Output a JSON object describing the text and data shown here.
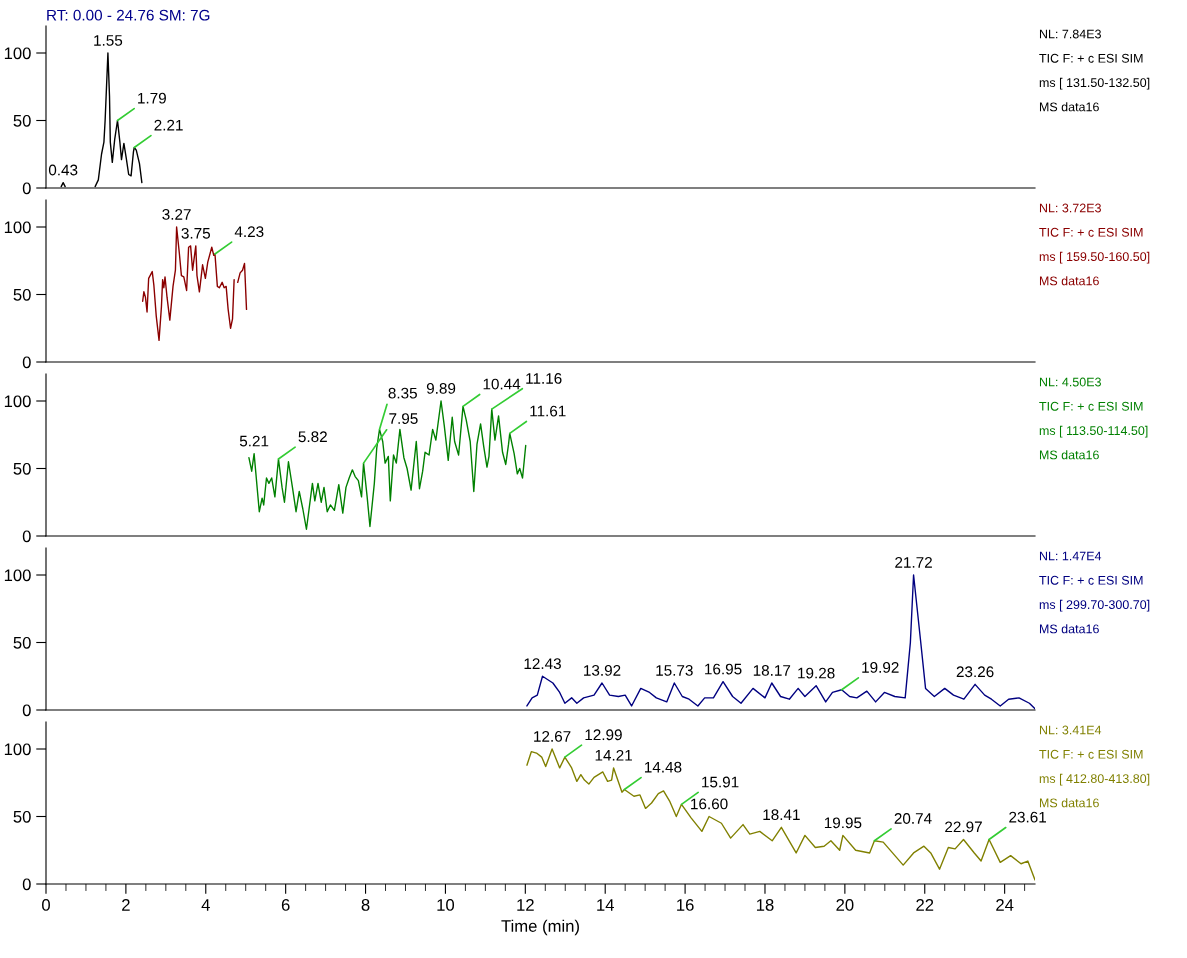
{
  "chart_data": [
    {
      "type": "line",
      "title": "RT: 0.00 - 24.76 SM: 7G",
      "xlim": [
        0,
        24.76
      ],
      "ylim": [
        0,
        120
      ],
      "xticks": [
        0,
        2,
        4,
        6,
        8,
        10,
        12,
        14,
        16,
        18,
        20,
        22,
        24
      ],
      "yticks": [
        0,
        50,
        100
      ],
      "tick_labels": "y",
      "grid": false,
      "series": [
        {
          "color": "#000000",
          "x": [
            0.38,
            0.43,
            0.48,
            null,
            1.23,
            1.31,
            1.39,
            1.45,
            1.48,
            1.55,
            1.59,
            1.61,
            1.66,
            1.72,
            1.79,
            1.85,
            1.89,
            1.95,
            2.01,
            2.07,
            2.13,
            2.19,
            2.21,
            2.26,
            2.34,
            2.4
          ],
          "values": [
            1,
            4,
            1,
            null,
            1,
            6,
            25,
            34,
            50,
            100,
            68,
            34,
            19,
            36,
            50,
            34,
            21,
            33,
            22,
            10,
            9,
            27,
            30,
            28,
            18,
            4
          ]
        }
      ],
      "annotations": [
        {
          "text": "0.43",
          "x": 0.43,
          "y": 4
        },
        {
          "text": "1.55",
          "x": 1.55,
          "y": 100
        },
        {
          "text": "1.79",
          "x": 1.79,
          "y": 50
        },
        {
          "text": "2.21",
          "x": 2.21,
          "y": 30
        },
        "NL: 7.84E3",
        "TIC F: + c ESI SIM",
        "ms [ 131.50-132.50]",
        "MS data16"
      ]
    },
    {
      "type": "line",
      "xlim": [
        0,
        24.76
      ],
      "ylim": [
        0,
        120
      ],
      "xticks": [
        0,
        2,
        4,
        6,
        8,
        10,
        12,
        14,
        16,
        18,
        20,
        22,
        24
      ],
      "yticks": [
        0,
        50,
        100
      ],
      "tick_labels": "y",
      "grid": false,
      "series": [
        {
          "color": "#8b0000",
          "x": [
            2.42,
            2.45,
            2.49,
            2.53,
            2.57,
            2.66,
            2.7,
            2.76,
            2.83,
            2.89,
            2.92,
            2.95,
            2.98,
            3.03,
            3.1,
            3.18,
            3.24,
            3.27,
            3.34,
            3.39,
            3.45,
            3.52,
            3.57,
            3.62,
            3.67,
            3.75,
            3.78,
            3.84,
            3.92,
            3.99,
            4.05,
            4.15,
            4.2,
            4.23,
            4.29,
            4.34,
            4.41,
            4.46,
            4.51,
            4.56,
            4.62,
            4.67,
            4.71,
            null,
            4.8,
            4.86,
            4.92,
            4.97,
            5.02
          ],
          "values": [
            45,
            52,
            48,
            37,
            62,
            67,
            57,
            34,
            16,
            41,
            61,
            55,
            63,
            48,
            31,
            56,
            68,
            100,
            80,
            64,
            63,
            53,
            85,
            86,
            68,
            86,
            64,
            52,
            72,
            62,
            74,
            85,
            79,
            80,
            56,
            55,
            59,
            55,
            56,
            39,
            25,
            32,
            61,
            null,
            59,
            66,
            68,
            73,
            39
          ]
        }
      ],
      "annotations": [
        {
          "text": "3.27",
          "x": 3.27,
          "y": 100
        },
        {
          "text": "3.75",
          "x": 3.75,
          "y": 86
        },
        {
          "text": "4.23",
          "x": 4.23,
          "y": 80
        },
        "NL: 3.72E3",
        "TIC F: + c ESI SIM",
        "ms [ 159.50-160.50]",
        "MS data16"
      ]
    },
    {
      "type": "line",
      "xlim": [
        0,
        24.76
      ],
      "ylim": [
        0,
        120
      ],
      "xticks": [
        0,
        2,
        4,
        6,
        8,
        10,
        12,
        14,
        16,
        18,
        20,
        22,
        24
      ],
      "yticks": [
        0,
        50,
        100
      ],
      "tick_labels": "y",
      "grid": false,
      "series": [
        {
          "color": "#008000",
          "x": [
            5.08,
            5.15,
            5.21,
            5.34,
            5.41,
            5.45,
            5.52,
            5.58,
            5.65,
            5.73,
            5.82,
            5.91,
            5.97,
            6.07,
            6.17,
            6.26,
            6.34,
            6.43,
            6.52,
            6.67,
            6.73,
            6.81,
            6.89,
            6.96,
            7.04,
            7.12,
            7.22,
            7.33,
            7.43,
            7.51,
            7.59,
            7.67,
            7.74,
            7.82,
            7.9,
            7.95,
            8.04,
            8.11,
            8.22,
            8.28,
            8.35,
            8.43,
            8.49,
            8.57,
            8.62,
            8.7,
            8.77,
            8.86,
            8.96,
            9.04,
            9.14,
            9.27,
            9.35,
            9.43,
            9.49,
            9.59,
            9.68,
            9.76,
            9.89,
            9.97,
            10.07,
            10.17,
            10.23,
            10.33,
            10.44,
            10.52,
            10.62,
            10.71,
            10.79,
            10.88,
            10.96,
            11.04,
            11.09,
            11.16,
            11.24,
            11.33,
            11.43,
            11.51,
            11.58,
            11.61,
            11.72,
            11.8,
            11.86,
            11.93,
            12.01
          ],
          "values": [
            58,
            48,
            61,
            18,
            28,
            23,
            43,
            39,
            43,
            29,
            57,
            36,
            25,
            55,
            36,
            18,
            33,
            20,
            5,
            39,
            26,
            39,
            25,
            36,
            18,
            23,
            19,
            38,
            17,
            36,
            43,
            49,
            44,
            41,
            29,
            54,
            29,
            7,
            39,
            65,
            79,
            70,
            54,
            59,
            26,
            60,
            54,
            79,
            58,
            50,
            34,
            70,
            35,
            48,
            62,
            60,
            79,
            71,
            100,
            82,
            56,
            88,
            70,
            60,
            96,
            86,
            70,
            33,
            68,
            83,
            66,
            51,
            59,
            94,
            71,
            89,
            62,
            53,
            68,
            76,
            61,
            46,
            50,
            43,
            67
          ]
        }
      ],
      "annotations": [
        {
          "text": "5.21",
          "x": 5.21,
          "y": 61
        },
        {
          "text": "5.82",
          "x": 5.82,
          "y": 57
        },
        {
          "text": "7.95",
          "x": 7.95,
          "y": 54
        },
        {
          "text": "8.35",
          "x": 8.35,
          "y": 79
        },
        {
          "text": "9.89",
          "x": 9.89,
          "y": 100
        },
        {
          "text": "10.44",
          "x": 10.44,
          "y": 96
        },
        {
          "text": "11.16",
          "x": 11.16,
          "y": 94
        },
        {
          "text": "11.61",
          "x": 11.61,
          "y": 76
        },
        "NL: 4.50E3",
        "TIC F: + c ESI SIM",
        "ms [ 113.50-114.50]",
        "MS data16"
      ]
    },
    {
      "type": "line",
      "xlim": [
        0,
        24.76
      ],
      "ylim": [
        0,
        120
      ],
      "xticks": [
        0,
        2,
        4,
        6,
        8,
        10,
        12,
        14,
        16,
        18,
        20,
        22,
        24
      ],
      "yticks": [
        0,
        50,
        100
      ],
      "tick_labels": "y",
      "grid": false,
      "series": [
        {
          "color": "#000080",
          "x": [
            12.04,
            12.17,
            12.3,
            12.43,
            12.69,
            12.86,
            12.99,
            13.16,
            13.29,
            13.46,
            13.72,
            13.92,
            14.11,
            14.33,
            14.5,
            14.66,
            14.89,
            15.11,
            15.28,
            15.54,
            15.73,
            15.93,
            16.1,
            16.32,
            16.49,
            16.71,
            16.95,
            17.19,
            17.4,
            17.7,
            18.0,
            18.17,
            18.39,
            18.61,
            18.83,
            19.0,
            19.28,
            19.52,
            19.69,
            19.92,
            20.12,
            20.3,
            20.55,
            20.77,
            20.99,
            21.25,
            21.51,
            21.64,
            21.72,
            21.9,
            22.02,
            22.24,
            22.5,
            22.72,
            22.98,
            23.26,
            23.5,
            23.67,
            23.89,
            24.1,
            24.36,
            24.62,
            24.76
          ],
          "values": [
            3,
            9,
            11,
            25,
            20,
            13,
            5,
            9,
            5,
            9,
            11,
            20,
            11,
            10,
            11,
            3,
            16,
            13,
            9,
            6,
            20,
            10,
            8,
            3,
            9,
            9,
            21,
            10,
            5,
            16,
            9,
            20,
            10,
            8,
            16,
            10,
            18,
            6,
            13,
            15,
            10,
            9,
            14,
            6,
            13,
            10,
            9,
            50,
            100,
            50,
            16,
            10,
            16,
            11,
            8,
            19,
            11,
            8,
            3,
            8,
            9,
            5,
            1
          ]
        }
      ],
      "annotations": [
        {
          "text": "12.43",
          "x": 12.43,
          "y": 25
        },
        {
          "text": "13.92",
          "x": 13.92,
          "y": 20
        },
        {
          "text": "15.73",
          "x": 15.73,
          "y": 20
        },
        {
          "text": "16.95",
          "x": 16.95,
          "y": 21
        },
        {
          "text": "18.17",
          "x": 18.17,
          "y": 20
        },
        {
          "text": "19.28",
          "x": 19.28,
          "y": 18
        },
        {
          "text": "19.92",
          "x": 19.92,
          "y": 15
        },
        {
          "text": "21.72",
          "x": 21.72,
          "y": 100
        },
        {
          "text": "23.26",
          "x": 23.26,
          "y": 19
        },
        "NL: 1.47E4",
        "TIC F: + c ESI SIM",
        "ms [ 299.70-300.70]",
        "MS data16"
      ]
    },
    {
      "type": "line",
      "xlabel": "Time (min)",
      "xlim": [
        0,
        24.76
      ],
      "ylim": [
        0,
        120
      ],
      "xticks": [
        0,
        2,
        4,
        6,
        8,
        10,
        12,
        14,
        16,
        18,
        20,
        22,
        24
      ],
      "yticks": [
        0,
        50,
        100
      ],
      "grid": false,
      "series": [
        {
          "color": "#808000",
          "x": [
            12.04,
            12.15,
            12.28,
            12.41,
            12.51,
            12.67,
            12.86,
            12.99,
            13.16,
            13.29,
            13.39,
            13.48,
            13.59,
            13.72,
            13.94,
            14.06,
            14.16,
            14.21,
            14.42,
            14.48,
            14.72,
            14.87,
            15.01,
            15.16,
            15.33,
            15.46,
            15.62,
            15.78,
            15.91,
            16.15,
            16.42,
            16.6,
            16.91,
            17.14,
            17.45,
            17.62,
            17.87,
            18.18,
            18.41,
            18.78,
            19.0,
            19.26,
            19.48,
            19.65,
            19.87,
            19.95,
            20.27,
            20.62,
            20.74,
            20.96,
            21.46,
            21.72,
            21.98,
            22.15,
            22.37,
            22.59,
            22.76,
            22.97,
            23.24,
            23.41,
            23.61,
            23.89,
            24.15,
            24.41,
            24.58,
            24.76
          ],
          "values": [
            88,
            98,
            97,
            94,
            87,
            100,
            86,
            94,
            86,
            76,
            81,
            77,
            74,
            79,
            83,
            76,
            77,
            86,
            68,
            70,
            65,
            66,
            56,
            60,
            67,
            69,
            61,
            50,
            59,
            49,
            39,
            50,
            45,
            34,
            44,
            37,
            39,
            32,
            42,
            23,
            36,
            27,
            28,
            32,
            25,
            36,
            25,
            23,
            32,
            31,
            14,
            23,
            28,
            23,
            11,
            27,
            26,
            33,
            23,
            17,
            33,
            16,
            21,
            15,
            17,
            3
          ]
        }
      ],
      "annotations": [
        {
          "text": "12.67",
          "x": 12.67,
          "y": 100
        },
        {
          "text": "12.99",
          "x": 12.99,
          "y": 94
        },
        {
          "text": "14.21",
          "x": 14.21,
          "y": 86
        },
        {
          "text": "14.48",
          "x": 14.48,
          "y": 70
        },
        {
          "text": "15.91",
          "x": 15.91,
          "y": 59
        },
        {
          "text": "16.60",
          "x": 16.6,
          "y": 50
        },
        {
          "text": "18.41",
          "x": 18.41,
          "y": 42
        },
        {
          "text": "19.95",
          "x": 19.95,
          "y": 36
        },
        {
          "text": "20.74",
          "x": 20.74,
          "y": 32
        },
        {
          "text": "22.97",
          "x": 22.97,
          "y": 33
        },
        {
          "text": "23.61",
          "x": 23.61,
          "y": 33
        },
        "NL: 3.41E4",
        "TIC F: + c ESI SIM",
        "ms [ 412.80-413.80]",
        "MS data16"
      ]
    }
  ]
}
